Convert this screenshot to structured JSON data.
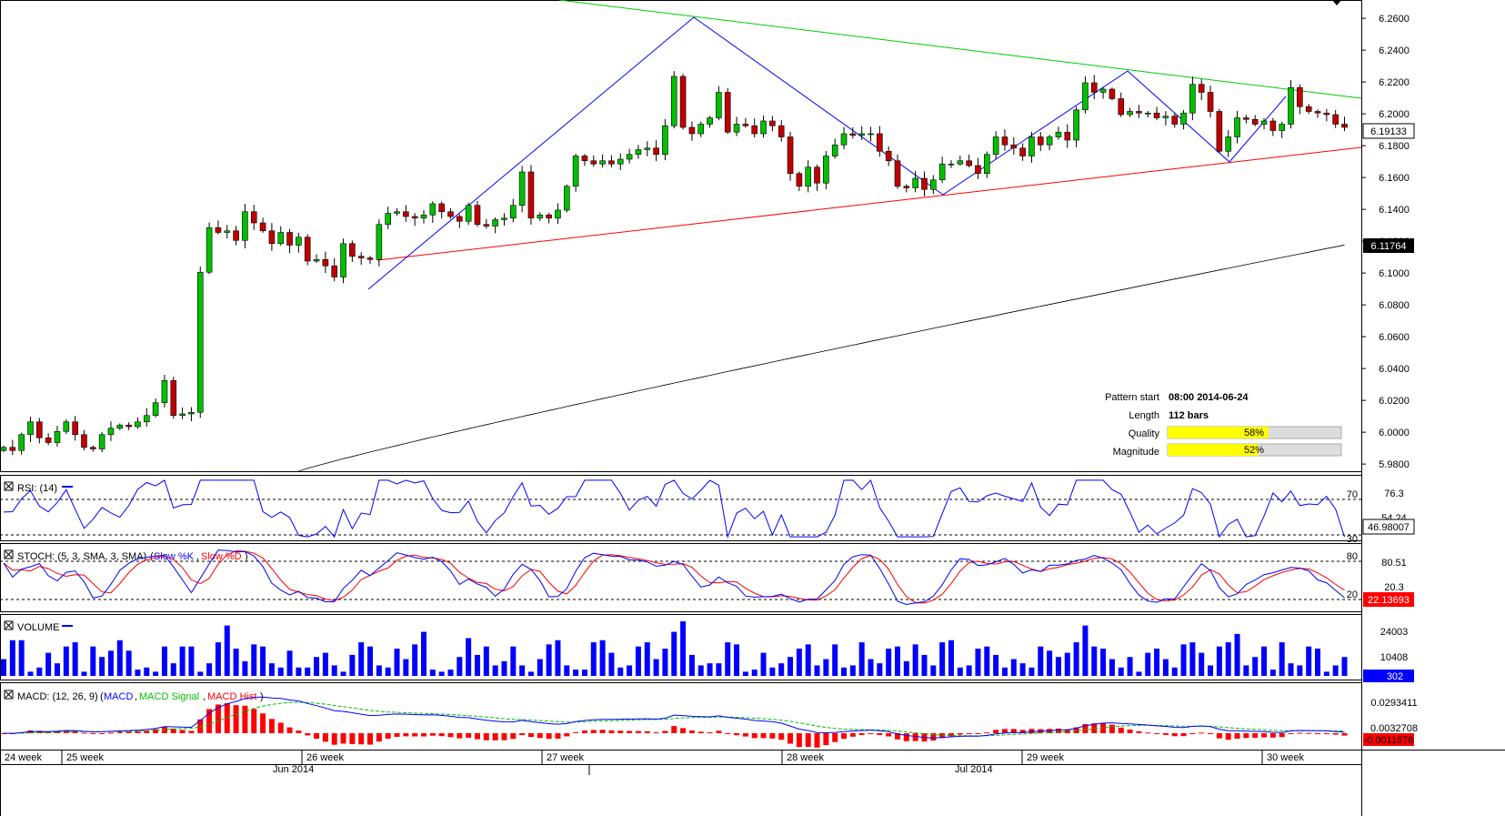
{
  "chart_data": {
    "type": "candlestick",
    "price_axis": {
      "ticks": [
        "6.2600",
        "6.2400",
        "6.2200",
        "6.2000",
        "6.1800",
        "6.1600",
        "6.1400",
        "6.1200",
        "6.1000",
        "6.0800",
        "6.0600",
        "6.0400",
        "6.0200",
        "6.0000",
        "5.9800"
      ],
      "range": [
        5.9755,
        6.2715
      ],
      "current_price": "6.19133",
      "ma_value": "6.11764"
    },
    "time_axis": {
      "weeks": [
        "24 week",
        "25 week",
        "26 week",
        "27 week",
        "28 week",
        "29 week",
        "30 week"
      ],
      "months": [
        "Jun 2014",
        "Jul 2014"
      ]
    },
    "pattern": {
      "start_label": "Pattern start",
      "start_value": "08:00 2014-06-24",
      "length_label": "Length",
      "length_value": "112 bars",
      "quality_label": "Quality",
      "quality_value": "58%",
      "quality_level": 0.58,
      "magnitude_label": "Magnitude",
      "magnitude_value": "52%",
      "magnitude_level": 0.52
    },
    "close_series": [
      5.9905,
      5.9885,
      5.9985,
      6.0065,
      5.9965,
      5.9935,
      6.0005,
      6.0065,
      5.9985,
      5.9905,
      5.9895,
      5.9985,
      6.0025,
      6.0045,
      6.0035,
      6.0065,
      6.0105,
      6.0185,
      6.0325,
      6.0105,
      6.0115,
      6.0125,
      6.1005,
      6.1285,
      6.1255,
      6.1265,
      6.1205,
      6.1385,
      6.1315,
      6.1265,
      6.1185,
      6.1255,
      6.1175,
      6.1225,
      6.1075,
      6.1085,
      6.1045,
      6.0975,
      6.1185,
      6.1105,
      6.1095,
      6.1085,
      6.1305,
      6.1375,
      6.1385,
      6.1355,
      6.1345,
      6.1365,
      6.1435,
      6.1385,
      6.1355,
      6.1325,
      6.1425,
      6.1305,
      6.1295,
      6.1335,
      6.1345,
      6.1425,
      6.1635,
      6.1345,
      6.1365,
      6.1345,
      6.1395,
      6.1545,
      6.1735,
      6.1705,
      6.1685,
      6.1705,
      6.1685,
      6.1715,
      6.1745,
      6.1775,
      6.1785,
      6.1745,
      6.1925,
      6.2235,
      6.1915,
      6.1875,
      6.1935,
      6.1975,
      6.2135,
      6.1885,
      6.1935,
      6.1925,
      6.1875,
      6.1955,
      6.1925,
      6.1855,
      6.1625,
      6.1545,
      6.1665,
      6.1565,
      6.1735,
      6.1805,
      6.1875,
      6.1865,
      6.1875,
      6.1875,
      6.1765,
      6.1705,
      6.1545,
      6.1535,
      6.1595,
      6.1525,
      6.1585,
      6.1685,
      6.1685,
      6.1705,
      6.1675,
      6.1625,
      6.1745,
      6.1855,
      6.1805,
      6.1785,
      6.1735,
      6.1855,
      6.1805,
      6.1855,
      6.1885,
      6.1835,
      6.2025,
      6.2195,
      6.2135,
      6.2155,
      6.2095,
      6.1995,
      6.2015,
      6.2005,
      6.2005,
      6.1975,
      6.1985,
      6.1935,
      6.2005,
      6.2185,
      6.2135,
      6.2015,
      6.1765,
      6.1855,
      6.1975,
      6.1965,
      6.1935,
      6.1955,
      6.1895,
      6.1935,
      6.2165,
      6.2045,
      6.2015,
      6.2005,
      6.1995,
      6.1935,
      6.1915
    ],
    "rsi": {
      "label": "RSI: (14)",
      "levels": [
        "70",
        "30"
      ],
      "right_labels": [
        "76.3",
        "54.24",
        "46.98007"
      ]
    },
    "stoch": {
      "label": "STOCH: (5, 3, SMA, 3, SMA)",
      "k_name": "Slow %K",
      "d_name": "Slow %D",
      "levels": [
        "80",
        "20"
      ],
      "right_labels": [
        "80.51",
        "20.3",
        "22.13693"
      ]
    },
    "volume": {
      "label": "VOLUME",
      "right_labels": [
        "24003",
        "10408",
        "302"
      ],
      "values": [
        8,
        17,
        17,
        2,
        4,
        11,
        6,
        14,
        16,
        2,
        14,
        9,
        12,
        17,
        12,
        3,
        4,
        2,
        14,
        6,
        14,
        14,
        2,
        6,
        16,
        24,
        13,
        7,
        15,
        14,
        6,
        4,
        12,
        4,
        4,
        9,
        11,
        5,
        2,
        10,
        16,
        14,
        5,
        4,
        13,
        8,
        15,
        21,
        3,
        2,
        3,
        9,
        18,
        10,
        14,
        5,
        7,
        14,
        5,
        2,
        8,
        15,
        17,
        5,
        3,
        3,
        16,
        17,
        11,
        4,
        5,
        14,
        16,
        8,
        13,
        21,
        26,
        10,
        5,
        6,
        6,
        16,
        15,
        2,
        3,
        11,
        4,
        6,
        9,
        13,
        15,
        5,
        8,
        15,
        4,
        5,
        16,
        8,
        6,
        13,
        14,
        7,
        15,
        10,
        5,
        16,
        17,
        4,
        5,
        13,
        14,
        10,
        4,
        8,
        6,
        4,
        14,
        12,
        9,
        11,
        16,
        24,
        14,
        13,
        8,
        4,
        9,
        2,
        11,
        13,
        8,
        4,
        15,
        16,
        11,
        5,
        14,
        16,
        20,
        5,
        9,
        14,
        3,
        16,
        6,
        5,
        14,
        13,
        2,
        5,
        9
      ]
    },
    "macd": {
      "label": "MACD: (12, 26, 9)",
      "names": [
        "MACD",
        "MACD Signal",
        "MACD Hist"
      ],
      "right_labels": [
        "0.0293411",
        "0.0032708",
        "-0.0011678"
      ]
    }
  },
  "colors": {
    "bull": "#00c000",
    "bear": "#c00000",
    "resistance": "#00cc00",
    "support": "#ff0000",
    "zigzag": "#0000ff",
    "ma": "#000000",
    "rsi": "#0000ff",
    "stoch_k": "#0000ff",
    "stoch_d": "#ff0000",
    "volume": "#0000ff",
    "macd": "#0000ff",
    "signal": "#00c000",
    "hist": "#ff0000"
  }
}
